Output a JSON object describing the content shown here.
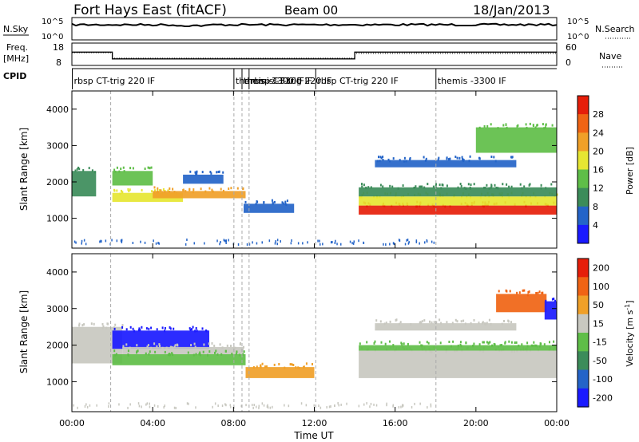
{
  "header": {
    "station": "Fort Hays East (fitACF)",
    "beam": "Beam 00",
    "date": "18/Jan/2013"
  },
  "noise_panel": {
    "left_label": "N.Sky",
    "left_ticks": [
      "10^5",
      "10^0"
    ],
    "right_label": "N.Search",
    "right_ticks": [
      "10^5",
      "10^0"
    ]
  },
  "freq_panel": {
    "left_label_top": "Freq.",
    "left_label_bottom": "[MHz]",
    "left_ticks": [
      "18",
      "8"
    ],
    "right_label": "Nave",
    "right_ticks": [
      "60",
      "0"
    ]
  },
  "cpid_panel": {
    "label": "CPID",
    "entries": [
      {
        "text": "rbsp CT-trig 220 IF",
        "x": 0.1
      },
      {
        "text": "themis -3300 IF",
        "x": 8.1
      },
      {
        "text": "themis -3300 IF",
        "x": 8.5
      },
      {
        "text": "rbsp CT-trig 220 IF",
        "x": 8.85
      },
      {
        "text": "rbsp CT-trig 220 IF",
        "x": 12.15
      },
      {
        "text": "themis -3300 IF",
        "x": 18.1
      }
    ]
  },
  "x_axis": {
    "label": "Time UT",
    "ticks": [
      "00:00",
      "04:00",
      "08:00",
      "12:00",
      "16:00",
      "20:00",
      "00:00"
    ]
  },
  "power_panel": {
    "ylabel": "Slant Range [km]",
    "yticks": [
      "1000",
      "2000",
      "3000",
      "4000"
    ],
    "colorbar_label": "Power [dB]",
    "colorbar_ticks": [
      "4",
      "8",
      "12",
      "16",
      "20",
      "24",
      "28"
    ],
    "colors": [
      "#1a1aff",
      "#2464c8",
      "#3c8c5a",
      "#5fbe48",
      "#e6e632",
      "#f0a028",
      "#f06414",
      "#e61e0a"
    ]
  },
  "velocity_panel": {
    "ylabel": "Slant Range [km]",
    "yticks": [
      "1000",
      "2000",
      "3000",
      "4000"
    ],
    "colorbar_label": "Velocity [m s^-1]",
    "colorbar_ticks": [
      "200",
      "100",
      "50",
      "15",
      "-15",
      "-50",
      "-100",
      "-200"
    ],
    "colors": [
      "#1a1aff",
      "#2464c8",
      "#3c8c5a",
      "#5fbe48",
      "#c8c8c0",
      "#f0a028",
      "#f06414",
      "#e61e0a"
    ]
  },
  "chart_data": {
    "type": "heatmap",
    "x_range_hours": [
      0,
      24
    ],
    "y_range_km": [
      180,
      4500
    ],
    "cpid_change_hours": [
      2,
      8.1,
      8.5,
      8.85,
      12.15,
      18.1
    ],
    "frequency_MHz": [
      {
        "from": 0,
        "to": 2,
        "value": 14.5
      },
      {
        "from": 2,
        "to": 12,
        "value": 10.5
      },
      {
        "from": 12,
        "to": 14,
        "value": 10.5
      },
      {
        "from": 14,
        "to": 24,
        "value": 14.5
      }
    ],
    "power_bands": [
      {
        "t0": 0,
        "t1": 1.2,
        "r0": 1600,
        "r1": 2300,
        "level": 2
      },
      {
        "t0": 2,
        "t1": 5.5,
        "r0": 1450,
        "r1": 1700,
        "level": 4
      },
      {
        "t0": 2,
        "t1": 4,
        "r0": 1900,
        "r1": 2300,
        "level": 3
      },
      {
        "t0": 4,
        "t1": 8.6,
        "r0": 1550,
        "r1": 1750,
        "level": 5
      },
      {
        "t0": 5.5,
        "t1": 7.5,
        "r0": 1950,
        "r1": 2200,
        "level": 1
      },
      {
        "t0": 8.5,
        "t1": 11,
        "r0": 1150,
        "r1": 1400,
        "level": 1
      },
      {
        "t0": 14.2,
        "t1": 24,
        "r0": 1100,
        "r1": 1350,
        "level": 7
      },
      {
        "t0": 14.2,
        "t1": 24,
        "r0": 1350,
        "r1": 1600,
        "level": 4
      },
      {
        "t0": 14.2,
        "t1": 24,
        "r0": 1600,
        "r1": 1850,
        "level": 2
      },
      {
        "t0": 15,
        "t1": 22,
        "r0": 2400,
        "r1": 2600,
        "level": 1
      },
      {
        "t0": 20,
        "t1": 24,
        "r0": 2800,
        "r1": 3500,
        "level": 3
      }
    ],
    "velocity_bands": [
      {
        "t0": 0,
        "t1": 2.5,
        "r0": 1500,
        "r1": 2500,
        "level": 4
      },
      {
        "t0": 2,
        "t1": 6.8,
        "r0": 1900,
        "r1": 2400,
        "level": 0
      },
      {
        "t0": 2.5,
        "t1": 8.5,
        "r0": 1750,
        "r1": 1950,
        "level": 4
      },
      {
        "t0": 2,
        "t1": 8.6,
        "r0": 1450,
        "r1": 1750,
        "level": 3
      },
      {
        "t0": 8.6,
        "t1": 12,
        "r0": 1100,
        "r1": 1400,
        "level": 5
      },
      {
        "t0": 14.2,
        "t1": 24,
        "r0": 1100,
        "r1": 1850,
        "level": 4
      },
      {
        "t0": 14.2,
        "t1": 24,
        "r0": 1850,
        "r1": 2000,
        "level": 3
      },
      {
        "t0": 15,
        "t1": 22,
        "r0": 2400,
        "r1": 2600,
        "level": 4
      },
      {
        "t0": 21,
        "t1": 23.5,
        "r0": 2900,
        "r1": 3400,
        "level": 6
      },
      {
        "t0": 23.4,
        "t1": 24,
        "r0": 2700,
        "r1": 3200,
        "level": 0
      }
    ]
  }
}
